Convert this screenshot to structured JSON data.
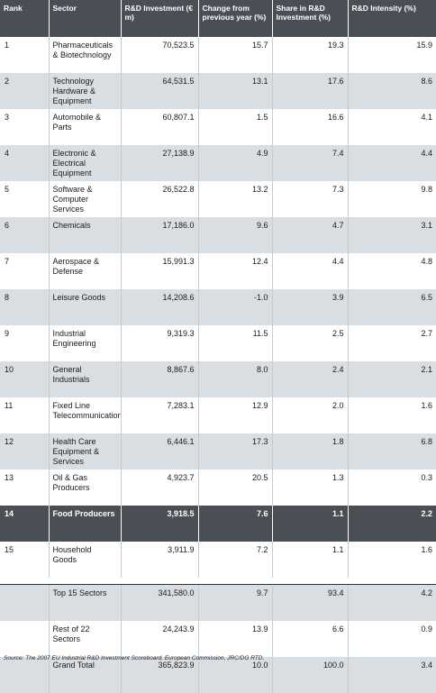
{
  "headers": {
    "rank": "Rank",
    "sector": "Sector",
    "investment": "R&D Investment (€ m)",
    "change": "Change from previous year (%)",
    "share": "Share in R&D Investment (%)",
    "intensity": "R&D Intensity (%)"
  },
  "rows": [
    {
      "rank": "1",
      "sector": "Pharmaceuticals & Biotechnology",
      "investment": "70,523.5",
      "change": "15.7",
      "share": "19.3",
      "intensity": "15.9"
    },
    {
      "rank": "2",
      "sector": "Technology Hardware & Equipment",
      "investment": "64,531.5",
      "change": "13.1",
      "share": "17.6",
      "intensity": "8.6"
    },
    {
      "rank": "3",
      "sector": "Automobile & Parts",
      "investment": "60,807.1",
      "change": "1.5",
      "share": "16.6",
      "intensity": "4.1"
    },
    {
      "rank": "4",
      "sector": "Electronic & Electrical Equipment",
      "investment": "27,138.9",
      "change": "4.9",
      "share": "7.4",
      "intensity": "4.4"
    },
    {
      "rank": "5",
      "sector": "Software & Computer Services",
      "investment": "26,522.8",
      "change": "13.2",
      "share": "7.3",
      "intensity": "9.8"
    },
    {
      "rank": "6",
      "sector": "Chemicals",
      "investment": "17,186.0",
      "change": "9.6",
      "share": "4.7",
      "intensity": "3.1"
    },
    {
      "rank": "7",
      "sector": "Aerospace & Defense",
      "investment": "15,991.3",
      "change": "12.4",
      "share": "4.4",
      "intensity": "4.8"
    },
    {
      "rank": "8",
      "sector": "Leisure Goods",
      "investment": "14,208.6",
      "change": "-1.0",
      "share": "3.9",
      "intensity": "6.5"
    },
    {
      "rank": "9",
      "sector": "Industrial Engineering",
      "investment": "9,319.3",
      "change": "11.5",
      "share": "2.5",
      "intensity": "2.7"
    },
    {
      "rank": "10",
      "sector": "General Industrials",
      "investment": "8,867.6",
      "change": "8.0",
      "share": "2.4",
      "intensity": "2.1"
    },
    {
      "rank": "11",
      "sector": "Fixed Line Telecommunications",
      "investment": "7,283.1",
      "change": "12.9",
      "share": "2.0",
      "intensity": "1.6"
    },
    {
      "rank": "12",
      "sector": "Health Care Equipment & Services",
      "investment": "6,446.1",
      "change": "17.3",
      "share": "1.8",
      "intensity": "6.8"
    },
    {
      "rank": "13",
      "sector": "Oil & Gas Producers",
      "investment": "4,923.7",
      "change": "20.5",
      "share": "1.3",
      "intensity": "0.3"
    },
    {
      "rank": "14",
      "sector": "Food Producers",
      "investment": "3,918.5",
      "change": "7.6",
      "share": "1.1",
      "intensity": "2.2",
      "highlight": true
    },
    {
      "rank": "15",
      "sector": "Household Goods",
      "investment": "3,911.9",
      "change": "7.2",
      "share": "1.1",
      "intensity": "1.6"
    }
  ],
  "totals": [
    {
      "rank": "",
      "sector": "Top 15 Sectors",
      "investment": "341,580.0",
      "change": "9.7",
      "share": "93.4",
      "intensity": "4.2"
    },
    {
      "rank": "",
      "sector": "Rest of 22 Sectors",
      "investment": "24,243.9",
      "change": "13.9",
      "share": "6.6",
      "intensity": "0.9"
    },
    {
      "rank": "",
      "sector": "Grand Total",
      "investment": "365,823.9",
      "change": "10.0",
      "share": "100.0",
      "intensity": "3.4"
    }
  ],
  "source": "Source: The 2007 EU Industrial R&D Investment Scoreboard. European Commission, JRC/DG RTD."
}
